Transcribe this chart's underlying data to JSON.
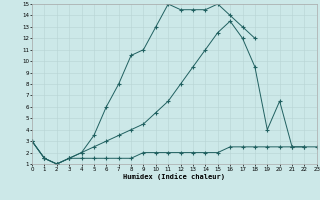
{
  "xlabel": "Humidex (Indice chaleur)",
  "background_color": "#cce8e8",
  "grid_color": "#b8d4d4",
  "line_color": "#206060",
  "xlim": [
    0,
    23
  ],
  "ylim": [
    1,
    15
  ],
  "xticks": [
    0,
    1,
    2,
    3,
    4,
    5,
    6,
    7,
    8,
    9,
    10,
    11,
    12,
    13,
    14,
    15,
    16,
    17,
    18,
    19,
    20,
    21,
    22,
    23
  ],
  "yticks": [
    1,
    2,
    3,
    4,
    5,
    6,
    7,
    8,
    9,
    10,
    11,
    12,
    13,
    14,
    15
  ],
  "line1_x": [
    0,
    1,
    2,
    3,
    4,
    5,
    6,
    7,
    8,
    9,
    10,
    11,
    12,
    13,
    14,
    15,
    16,
    17,
    18
  ],
  "line1_y": [
    3,
    1.5,
    1,
    1.5,
    2,
    3.5,
    6,
    8,
    10.5,
    11,
    13,
    15,
    14.5,
    14.5,
    14.5,
    15,
    14,
    13,
    12
  ],
  "line2_x": [
    0,
    1,
    2,
    3,
    4,
    5,
    6,
    7,
    8,
    9,
    10,
    11,
    12,
    13,
    14,
    15,
    16,
    17,
    18,
    19,
    20,
    21,
    22
  ],
  "line2_y": [
    3,
    1.5,
    1,
    1.5,
    2,
    2.5,
    3,
    3.5,
    4,
    4.5,
    5.5,
    6.5,
    8,
    9.5,
    11,
    12.5,
    13.5,
    12,
    9.5,
    4,
    6.5,
    2.5,
    2.5
  ],
  "line3_x": [
    0,
    1,
    2,
    3,
    4,
    5,
    6,
    7,
    8,
    9,
    10,
    11,
    12,
    13,
    14,
    15,
    16,
    17,
    18,
    19,
    20,
    21,
    22,
    23
  ],
  "line3_y": [
    3,
    1.5,
    1,
    1.5,
    1.5,
    1.5,
    1.5,
    1.5,
    1.5,
    2,
    2,
    2,
    2,
    2,
    2,
    2,
    2.5,
    2.5,
    2.5,
    2.5,
    2.5,
    2.5,
    2.5,
    2.5
  ]
}
